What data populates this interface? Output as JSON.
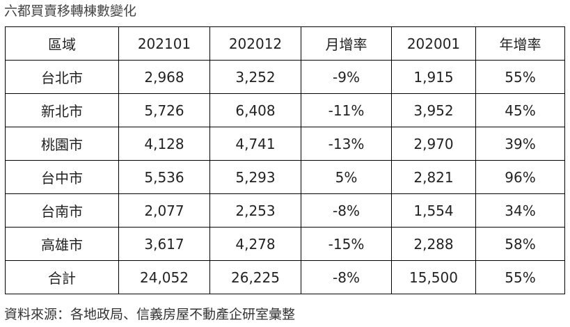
{
  "title": "六都買賣移轉棟數變化",
  "table": {
    "headers": [
      "區域",
      "202101",
      "202012",
      "月增率",
      "202001",
      "年增率"
    ],
    "rows": [
      [
        "台北市",
        "2,968",
        "3,252",
        "-9%",
        "1,915",
        "55%"
      ],
      [
        "新北市",
        "5,726",
        "6,408",
        "-11%",
        "3,952",
        "45%"
      ],
      [
        "桃園市",
        "4,128",
        "4,741",
        "-13%",
        "2,970",
        "39%"
      ],
      [
        "台中市",
        "5,536",
        "5,293",
        "5%",
        "2,821",
        "96%"
      ],
      [
        "台南市",
        "2,077",
        "2,253",
        "-8%",
        "1,554",
        "34%"
      ],
      [
        "高雄市",
        "3,617",
        "4,278",
        "-15%",
        "2,288",
        "58%"
      ],
      [
        "合計",
        "24,052",
        "26,225",
        "-8%",
        "15,500",
        "55%"
      ]
    ]
  },
  "source": "資料來源：各地政局、信義房屋不動產企研室彙整"
}
